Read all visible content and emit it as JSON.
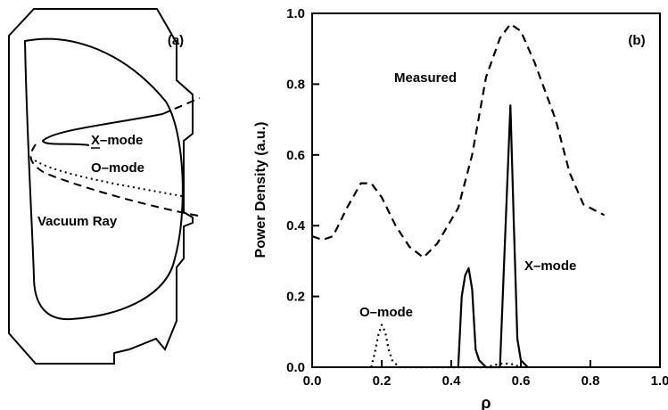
{
  "panel_a": {
    "label": "(a)",
    "ray_labels": {
      "x_mode": "X–mode",
      "o_mode": "O–mode",
      "vacuum": "Vacuum Ray"
    }
  },
  "chart_data": {
    "type": "line",
    "panel_label": "(b)",
    "xlabel": "ρ",
    "ylabel": "Power Density (a.u.)",
    "xlim": [
      0.0,
      1.0
    ],
    "ylim": [
      0.0,
      1.0
    ],
    "xticks": [
      "0.0",
      "0.2",
      "0.4",
      "0.6",
      "0.8",
      "1.0"
    ],
    "yticks": [
      "0.0",
      "0.2",
      "0.4",
      "0.6",
      "0.8",
      "1.0"
    ],
    "grid": false,
    "series": [
      {
        "name": "Measured",
        "style": "dashed",
        "x": [
          0.0,
          0.03,
          0.06,
          0.1,
          0.14,
          0.17,
          0.2,
          0.24,
          0.28,
          0.32,
          0.36,
          0.42,
          0.46,
          0.5,
          0.54,
          0.57,
          0.6,
          0.64,
          0.7,
          0.74,
          0.78,
          0.84
        ],
        "y": [
          0.37,
          0.36,
          0.37,
          0.45,
          0.52,
          0.52,
          0.48,
          0.4,
          0.34,
          0.31,
          0.35,
          0.45,
          0.6,
          0.82,
          0.93,
          0.97,
          0.95,
          0.86,
          0.7,
          0.55,
          0.46,
          0.43
        ]
      },
      {
        "name": "X–mode",
        "style": "solid",
        "x": [
          0.42,
          0.43,
          0.44,
          0.45,
          0.46,
          0.47,
          0.48,
          0.5,
          0.54,
          0.55,
          0.57,
          0.58,
          0.59,
          0.6,
          0.62
        ],
        "y": [
          0.0,
          0.2,
          0.26,
          0.28,
          0.22,
          0.05,
          0.02,
          0.0,
          0.0,
          0.25,
          0.74,
          0.4,
          0.08,
          0.02,
          0.0
        ]
      },
      {
        "name": "O–mode",
        "style": "dotted",
        "x": [
          0.17,
          0.18,
          0.19,
          0.2,
          0.21,
          0.22,
          0.23,
          0.25,
          0.28,
          0.5,
          0.54,
          0.57,
          0.6
        ],
        "y": [
          0.0,
          0.04,
          0.09,
          0.12,
          0.1,
          0.05,
          0.02,
          0.0,
          0.0,
          0.0,
          0.01,
          0.01,
          0.0
        ]
      }
    ]
  }
}
